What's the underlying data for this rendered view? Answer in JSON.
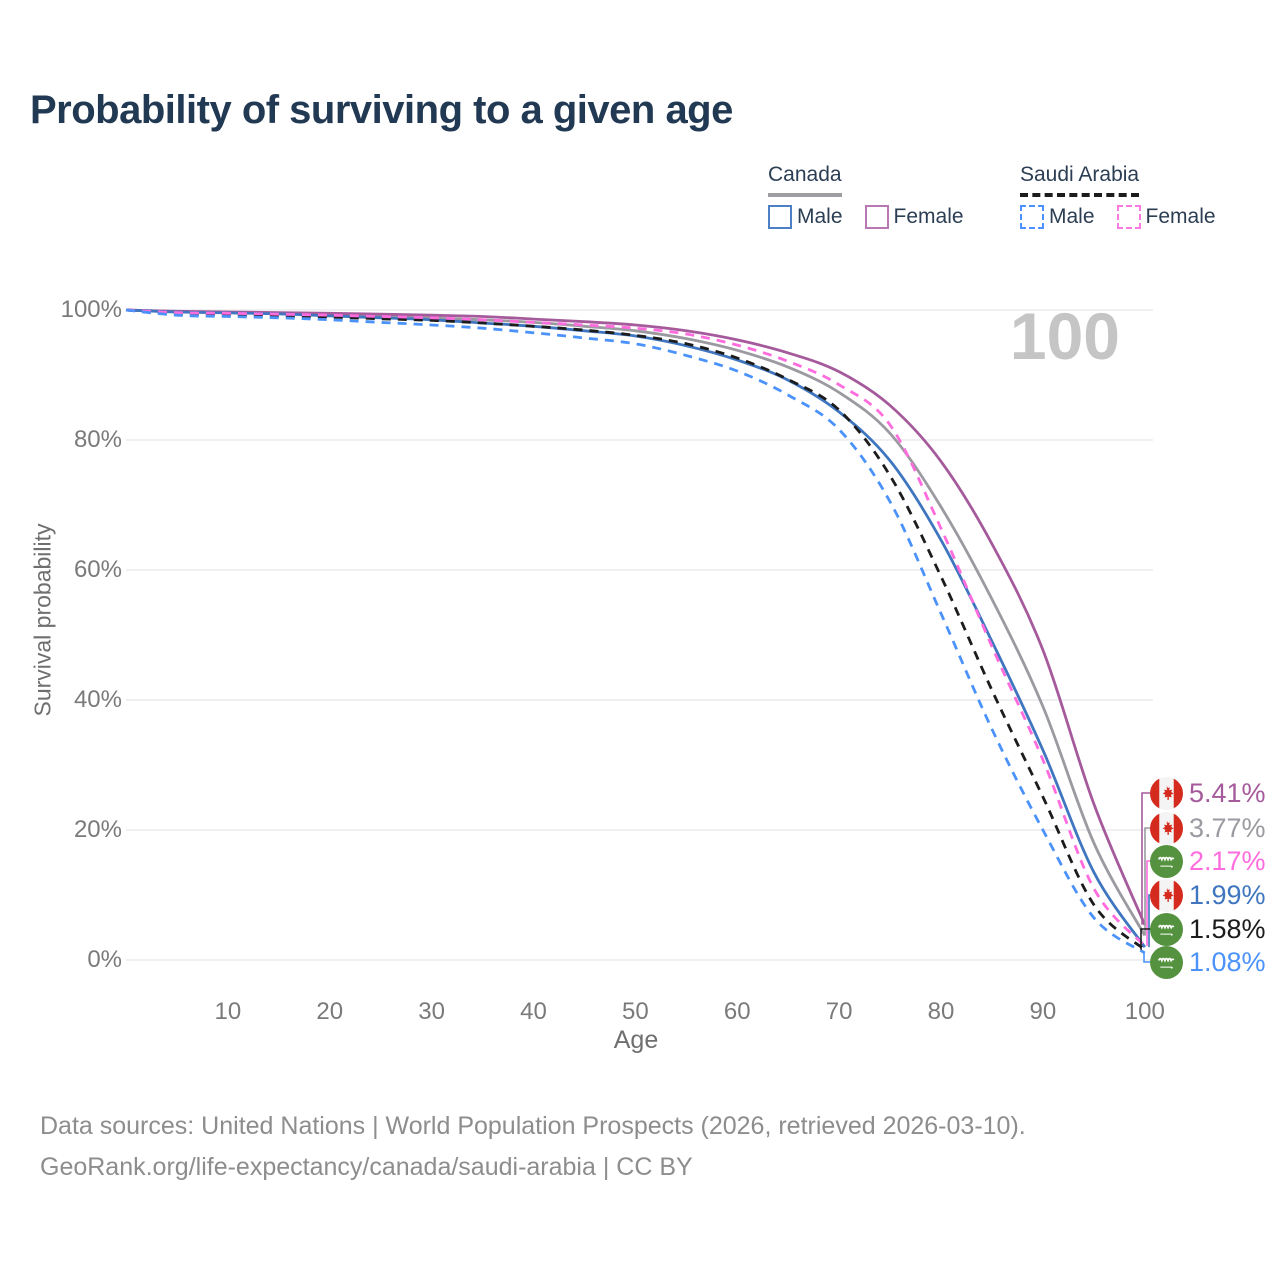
{
  "title": "Probability of surviving to a given age",
  "legend": {
    "groups": [
      {
        "label": "Canada",
        "line_style": "solid",
        "line_color": "#9e9ea2",
        "items": [
          {
            "label": "Male",
            "color": "#3f76bf"
          },
          {
            "label": "Female",
            "color": "#a55a9b"
          }
        ]
      },
      {
        "label": "Saudi Arabia",
        "line_style": "dashed",
        "line_color": "#1c1c1c",
        "items": [
          {
            "label": "Male",
            "color": "#4b92fb"
          },
          {
            "label": "Female",
            "color": "#ff6cdd"
          }
        ]
      }
    ]
  },
  "watermark": "100",
  "chart_data": {
    "type": "line",
    "title": "Probability of surviving to a given age",
    "xlabel": "Age",
    "ylabel": "Survival probability",
    "xlim": [
      0,
      100
    ],
    "ylim": [
      0,
      100
    ],
    "grid": "horizontal",
    "x_ticks": [
      "10",
      "20",
      "30",
      "40",
      "50",
      "60",
      "70",
      "80",
      "90",
      "100"
    ],
    "x_tick_values": [
      10,
      20,
      30,
      40,
      50,
      60,
      70,
      80,
      90,
      100
    ],
    "y_ticks": [
      "0%",
      "20%",
      "40%",
      "60%",
      "80%",
      "100%"
    ],
    "y_tick_values": [
      0,
      20,
      40,
      60,
      80,
      100
    ],
    "series": [
      {
        "name": "Canada",
        "sex": "All",
        "color": "#9a9aa0",
        "dashed": false,
        "end_value": 3.77,
        "points": [
          [
            0,
            100
          ],
          [
            5,
            99.75
          ],
          [
            10,
            99.6
          ],
          [
            15,
            99.45
          ],
          [
            20,
            99.3
          ],
          [
            25,
            99.05
          ],
          [
            30,
            98.8
          ],
          [
            35,
            98.5
          ],
          [
            40,
            98.1
          ],
          [
            45,
            97.5
          ],
          [
            50,
            96.8
          ],
          [
            55,
            95.6
          ],
          [
            60,
            93.8
          ],
          [
            65,
            91.2
          ],
          [
            70,
            87.3
          ],
          [
            75,
            81.0
          ],
          [
            80,
            69.7
          ],
          [
            85,
            55.5
          ],
          [
            90,
            39.0
          ],
          [
            95,
            18.0
          ],
          [
            100,
            3.77
          ]
        ]
      },
      {
        "name": "Canada",
        "sex": "Female",
        "color": "#a55a9b",
        "dashed": false,
        "end_value": 5.41,
        "points": [
          [
            0,
            100
          ],
          [
            5,
            99.8
          ],
          [
            10,
            99.7
          ],
          [
            15,
            99.6
          ],
          [
            20,
            99.5
          ],
          [
            25,
            99.35
          ],
          [
            30,
            99.2
          ],
          [
            35,
            99.0
          ],
          [
            40,
            98.6
          ],
          [
            45,
            98.2
          ],
          [
            50,
            97.7
          ],
          [
            55,
            96.8
          ],
          [
            60,
            95.4
          ],
          [
            65,
            93.4
          ],
          [
            70,
            90.5
          ],
          [
            75,
            85.3
          ],
          [
            80,
            76.7
          ],
          [
            85,
            64.0
          ],
          [
            90,
            47.7
          ],
          [
            95,
            24.0
          ],
          [
            100,
            5.41
          ]
        ]
      },
      {
        "name": "Canada",
        "sex": "Male",
        "color": "#3f76bf",
        "dashed": false,
        "end_value": 1.99,
        "points": [
          [
            0,
            100
          ],
          [
            5,
            99.7
          ],
          [
            10,
            99.55
          ],
          [
            15,
            99.4
          ],
          [
            20,
            99.1
          ],
          [
            25,
            98.8
          ],
          [
            30,
            98.5
          ],
          [
            35,
            98.0
          ],
          [
            40,
            97.5
          ],
          [
            45,
            96.8
          ],
          [
            50,
            96.0
          ],
          [
            55,
            94.5
          ],
          [
            60,
            92.3
          ],
          [
            65,
            89.2
          ],
          [
            70,
            84.3
          ],
          [
            75,
            76.8
          ],
          [
            80,
            64.6
          ],
          [
            85,
            49.0
          ],
          [
            90,
            32.3
          ],
          [
            95,
            13.5
          ],
          [
            100,
            1.99
          ]
        ]
      },
      {
        "name": "Saudi Arabia",
        "sex": "All",
        "color": "#1c1c1c",
        "dashed": true,
        "end_value": 1.58,
        "points": [
          [
            0,
            100
          ],
          [
            5,
            99.45
          ],
          [
            10,
            99.3
          ],
          [
            15,
            99.1
          ],
          [
            20,
            98.9
          ],
          [
            25,
            98.65
          ],
          [
            30,
            98.4
          ],
          [
            35,
            98.0
          ],
          [
            40,
            97.5
          ],
          [
            45,
            96.9
          ],
          [
            50,
            96.1
          ],
          [
            55,
            94.8
          ],
          [
            60,
            92.6
          ],
          [
            65,
            89.3
          ],
          [
            70,
            84.6
          ],
          [
            75,
            74.5
          ],
          [
            80,
            59.0
          ],
          [
            85,
            41.5
          ],
          [
            90,
            25.1
          ],
          [
            95,
            8.5
          ],
          [
            100,
            1.58
          ]
        ]
      },
      {
        "name": "Saudi Arabia",
        "sex": "Female",
        "color": "#ff6cdd",
        "dashed": true,
        "end_value": 2.17,
        "points": [
          [
            0,
            100
          ],
          [
            5,
            99.6
          ],
          [
            10,
            99.5
          ],
          [
            15,
            99.35
          ],
          [
            20,
            99.2
          ],
          [
            25,
            99.0
          ],
          [
            30,
            98.8
          ],
          [
            35,
            98.5
          ],
          [
            40,
            98.1
          ],
          [
            45,
            97.7
          ],
          [
            50,
            97.2
          ],
          [
            55,
            96.3
          ],
          [
            60,
            94.6
          ],
          [
            65,
            92.1
          ],
          [
            70,
            88.5
          ],
          [
            75,
            82.3
          ],
          [
            80,
            66.4
          ],
          [
            85,
            48.2
          ],
          [
            90,
            30.8
          ],
          [
            95,
            11.0
          ],
          [
            100,
            2.17
          ]
        ]
      },
      {
        "name": "Saudi Arabia",
        "sex": "Male",
        "color": "#4b92fb",
        "dashed": true,
        "end_value": 1.08,
        "points": [
          [
            0,
            100
          ],
          [
            5,
            99.2
          ],
          [
            10,
            99.0
          ],
          [
            15,
            98.8
          ],
          [
            20,
            98.5
          ],
          [
            25,
            98.1
          ],
          [
            30,
            97.7
          ],
          [
            35,
            97.2
          ],
          [
            40,
            96.5
          ],
          [
            45,
            95.7
          ],
          [
            50,
            94.8
          ],
          [
            55,
            93.0
          ],
          [
            60,
            90.6
          ],
          [
            65,
            86.9
          ],
          [
            70,
            81.6
          ],
          [
            75,
            70.5
          ],
          [
            80,
            53.3
          ],
          [
            85,
            35.5
          ],
          [
            90,
            20.0
          ],
          [
            95,
            6.5
          ],
          [
            100,
            1.08
          ]
        ]
      }
    ],
    "legend_position": "top-right"
  },
  "end_labels": [
    {
      "value": "5.41%",
      "flag": "canada",
      "series": 1
    },
    {
      "value": "3.77%",
      "flag": "canada",
      "series": 0
    },
    {
      "value": "2.17%",
      "flag": "saudi-arabia",
      "series": 4
    },
    {
      "value": "1.99%",
      "flag": "canada",
      "series": 2
    },
    {
      "value": "1.58%",
      "flag": "saudi-arabia",
      "series": 3
    },
    {
      "value": "1.08%",
      "flag": "saudi-arabia",
      "series": 5
    }
  ],
  "footer": {
    "line1": "Data sources: United Nations | World Population Prospects (2026, retrieved 2026-03-10).",
    "line2": "GeoRank.org/life-expectancy/canada/saudi-arabia | CC BY"
  }
}
